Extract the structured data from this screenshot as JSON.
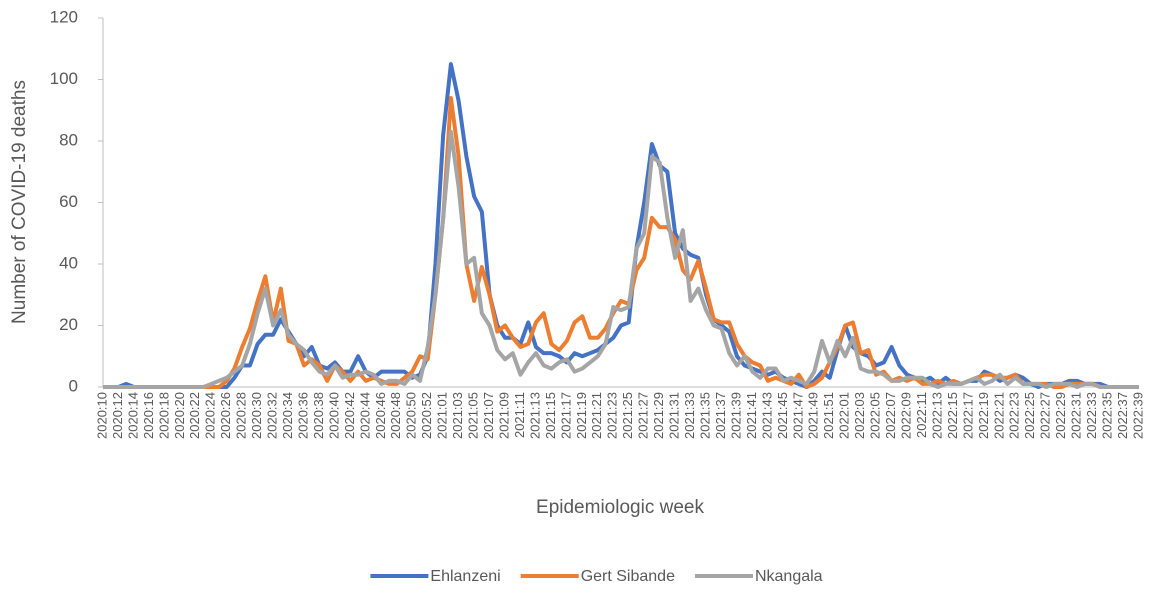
{
  "chart_data": {
    "type": "line",
    "x_label": "Epidemiologic week",
    "y_label": "Number of COVID-19 deaths",
    "ylim": [
      0,
      120
    ],
    "yticks": [
      0,
      20,
      40,
      60,
      80,
      100,
      120
    ],
    "grid": false,
    "legend": "bottom",
    "categories": [
      "2020:10",
      null,
      "2020:12",
      null,
      "2020:14",
      null,
      "2020:16",
      null,
      "2020:18",
      null,
      "2020:20",
      null,
      "2020:22",
      null,
      "2020:24",
      null,
      "2020:26",
      null,
      "2020:28",
      null,
      "2020:30",
      null,
      "2020:32",
      null,
      "2020:34",
      null,
      "2020:36",
      null,
      "2020:38",
      null,
      "2020:40",
      null,
      "2020:42",
      null,
      "2020:44",
      null,
      "2020:46",
      null,
      "2020:48",
      null,
      "2020:50",
      null,
      "2020:52",
      null,
      "2021:01",
      null,
      "2021:03",
      null,
      "2021:05",
      null,
      "2021:07",
      null,
      "2021:09",
      null,
      "2021:11",
      null,
      "2021:13",
      null,
      "2021:15",
      null,
      "2021:17",
      null,
      "2021:19",
      null,
      "2021:21",
      null,
      "2021:23",
      null,
      "2021:25",
      null,
      "2021:27",
      null,
      "2021:29",
      null,
      "2021:31",
      null,
      "2021:33",
      null,
      "2021:35",
      null,
      "2021:37",
      null,
      "2021:39",
      null,
      "2021:41",
      null,
      "2021:43",
      null,
      "2021:45",
      null,
      "2021:47",
      null,
      "2021:49",
      null,
      "2021:51",
      null,
      "2022:01",
      null,
      "2022:03",
      null,
      "2022:05",
      null,
      "2022:07",
      null,
      "2022:09",
      null,
      "2022:11",
      null,
      "2022:13",
      null,
      "2022:15",
      null,
      "2022:17",
      null,
      "2022:19",
      null,
      "2022:21",
      null,
      "2022:23",
      null,
      "2022:25",
      null,
      "2022:27",
      null,
      "2022:29",
      null,
      "2022:31",
      null,
      "2022:33",
      null,
      "2022:35",
      null,
      "2022:37",
      null,
      "2022:39"
    ],
    "series": [
      {
        "name": "Ehlanzeni",
        "color": "#4472c4",
        "values": [
          0,
          0,
          0,
          1,
          0,
          0,
          0,
          0,
          0,
          0,
          0,
          0,
          0,
          0,
          0,
          0,
          0,
          3,
          7,
          7,
          14,
          17,
          17,
          22,
          18,
          14,
          10,
          13,
          7,
          6,
          8,
          5,
          5,
          10,
          5,
          3,
          5,
          5,
          5,
          5,
          3,
          4,
          10,
          40,
          82,
          105,
          93,
          75,
          62,
          57,
          30,
          20,
          16,
          16,
          14,
          21,
          13,
          11,
          11,
          10,
          8,
          11,
          10,
          11,
          12,
          14,
          16,
          20,
          21,
          45,
          60,
          79,
          72,
          70,
          50,
          45,
          43,
          42,
          30,
          22,
          20,
          18,
          10,
          7,
          6,
          5,
          4,
          5,
          3,
          2,
          1,
          0,
          2,
          5,
          3,
          12,
          20,
          13,
          11,
          10,
          7,
          8,
          13,
          7,
          4,
          3,
          2,
          3,
          1,
          3,
          1,
          1,
          2,
          2,
          5,
          4,
          2,
          3,
          4,
          3,
          1,
          0,
          1,
          1,
          1,
          2,
          2,
          1,
          1,
          1,
          0,
          0,
          0,
          0,
          0
        ]
      },
      {
        "name": "Gert Sibande",
        "color": "#ed7d31",
        "values": [
          0,
          0,
          0,
          0,
          0,
          0,
          0,
          0,
          0,
          0,
          0,
          0,
          0,
          0,
          0,
          0,
          2,
          6,
          13,
          19,
          28,
          36,
          21,
          32,
          15,
          14,
          7,
          9,
          7,
          2,
          7,
          5,
          2,
          5,
          2,
          3,
          2,
          1,
          1,
          3,
          5,
          10,
          9,
          30,
          55,
          94,
          75,
          40,
          28,
          39,
          30,
          18,
          20,
          16,
          13,
          14,
          21,
          24,
          14,
          12,
          15,
          21,
          23,
          16,
          16,
          19,
          24,
          28,
          27,
          38,
          42,
          55,
          52,
          52,
          48,
          38,
          35,
          41,
          32,
          22,
          21,
          21,
          14,
          10,
          8,
          7,
          2,
          3,
          2,
          1,
          4,
          0,
          1,
          3,
          8,
          13,
          20,
          21,
          11,
          12,
          4,
          5,
          2,
          3,
          2,
          3,
          1,
          1,
          2,
          1,
          2,
          1,
          2,
          3,
          4,
          4,
          3,
          3,
          4,
          1,
          1,
          1,
          1,
          0,
          0,
          1,
          1,
          1,
          1,
          0,
          0,
          0,
          0,
          0,
          0
        ]
      },
      {
        "name": "Nkangala",
        "color": "#a5a5a5",
        "values": [
          0,
          0,
          0,
          0,
          0,
          0,
          0,
          0,
          0,
          0,
          0,
          0,
          0,
          0,
          1,
          2,
          3,
          5,
          7,
          14,
          24,
          32,
          20,
          25,
          17,
          14,
          12,
          8,
          5,
          4,
          7,
          3,
          4,
          4,
          5,
          4,
          1,
          2,
          2,
          1,
          4,
          2,
          13,
          30,
          55,
          83,
          65,
          40,
          42,
          24,
          20,
          12,
          9,
          11,
          4,
          8,
          11,
          7,
          6,
          8,
          9,
          5,
          6,
          8,
          10,
          14,
          26,
          25,
          26,
          45,
          50,
          75,
          73,
          55,
          42,
          51,
          28,
          32,
          25,
          20,
          19,
          11,
          7,
          10,
          5,
          3,
          6,
          6,
          2,
          3,
          2,
          1,
          5,
          15,
          8,
          15,
          10,
          16,
          6,
          5,
          5,
          4,
          2,
          2,
          3,
          3,
          3,
          1,
          0,
          1,
          1,
          1,
          2,
          3,
          1,
          2,
          4,
          1,
          3,
          1,
          1,
          1,
          0,
          1,
          1,
          1,
          0,
          1,
          1,
          0,
          0,
          0,
          0,
          0,
          0
        ]
      }
    ]
  }
}
